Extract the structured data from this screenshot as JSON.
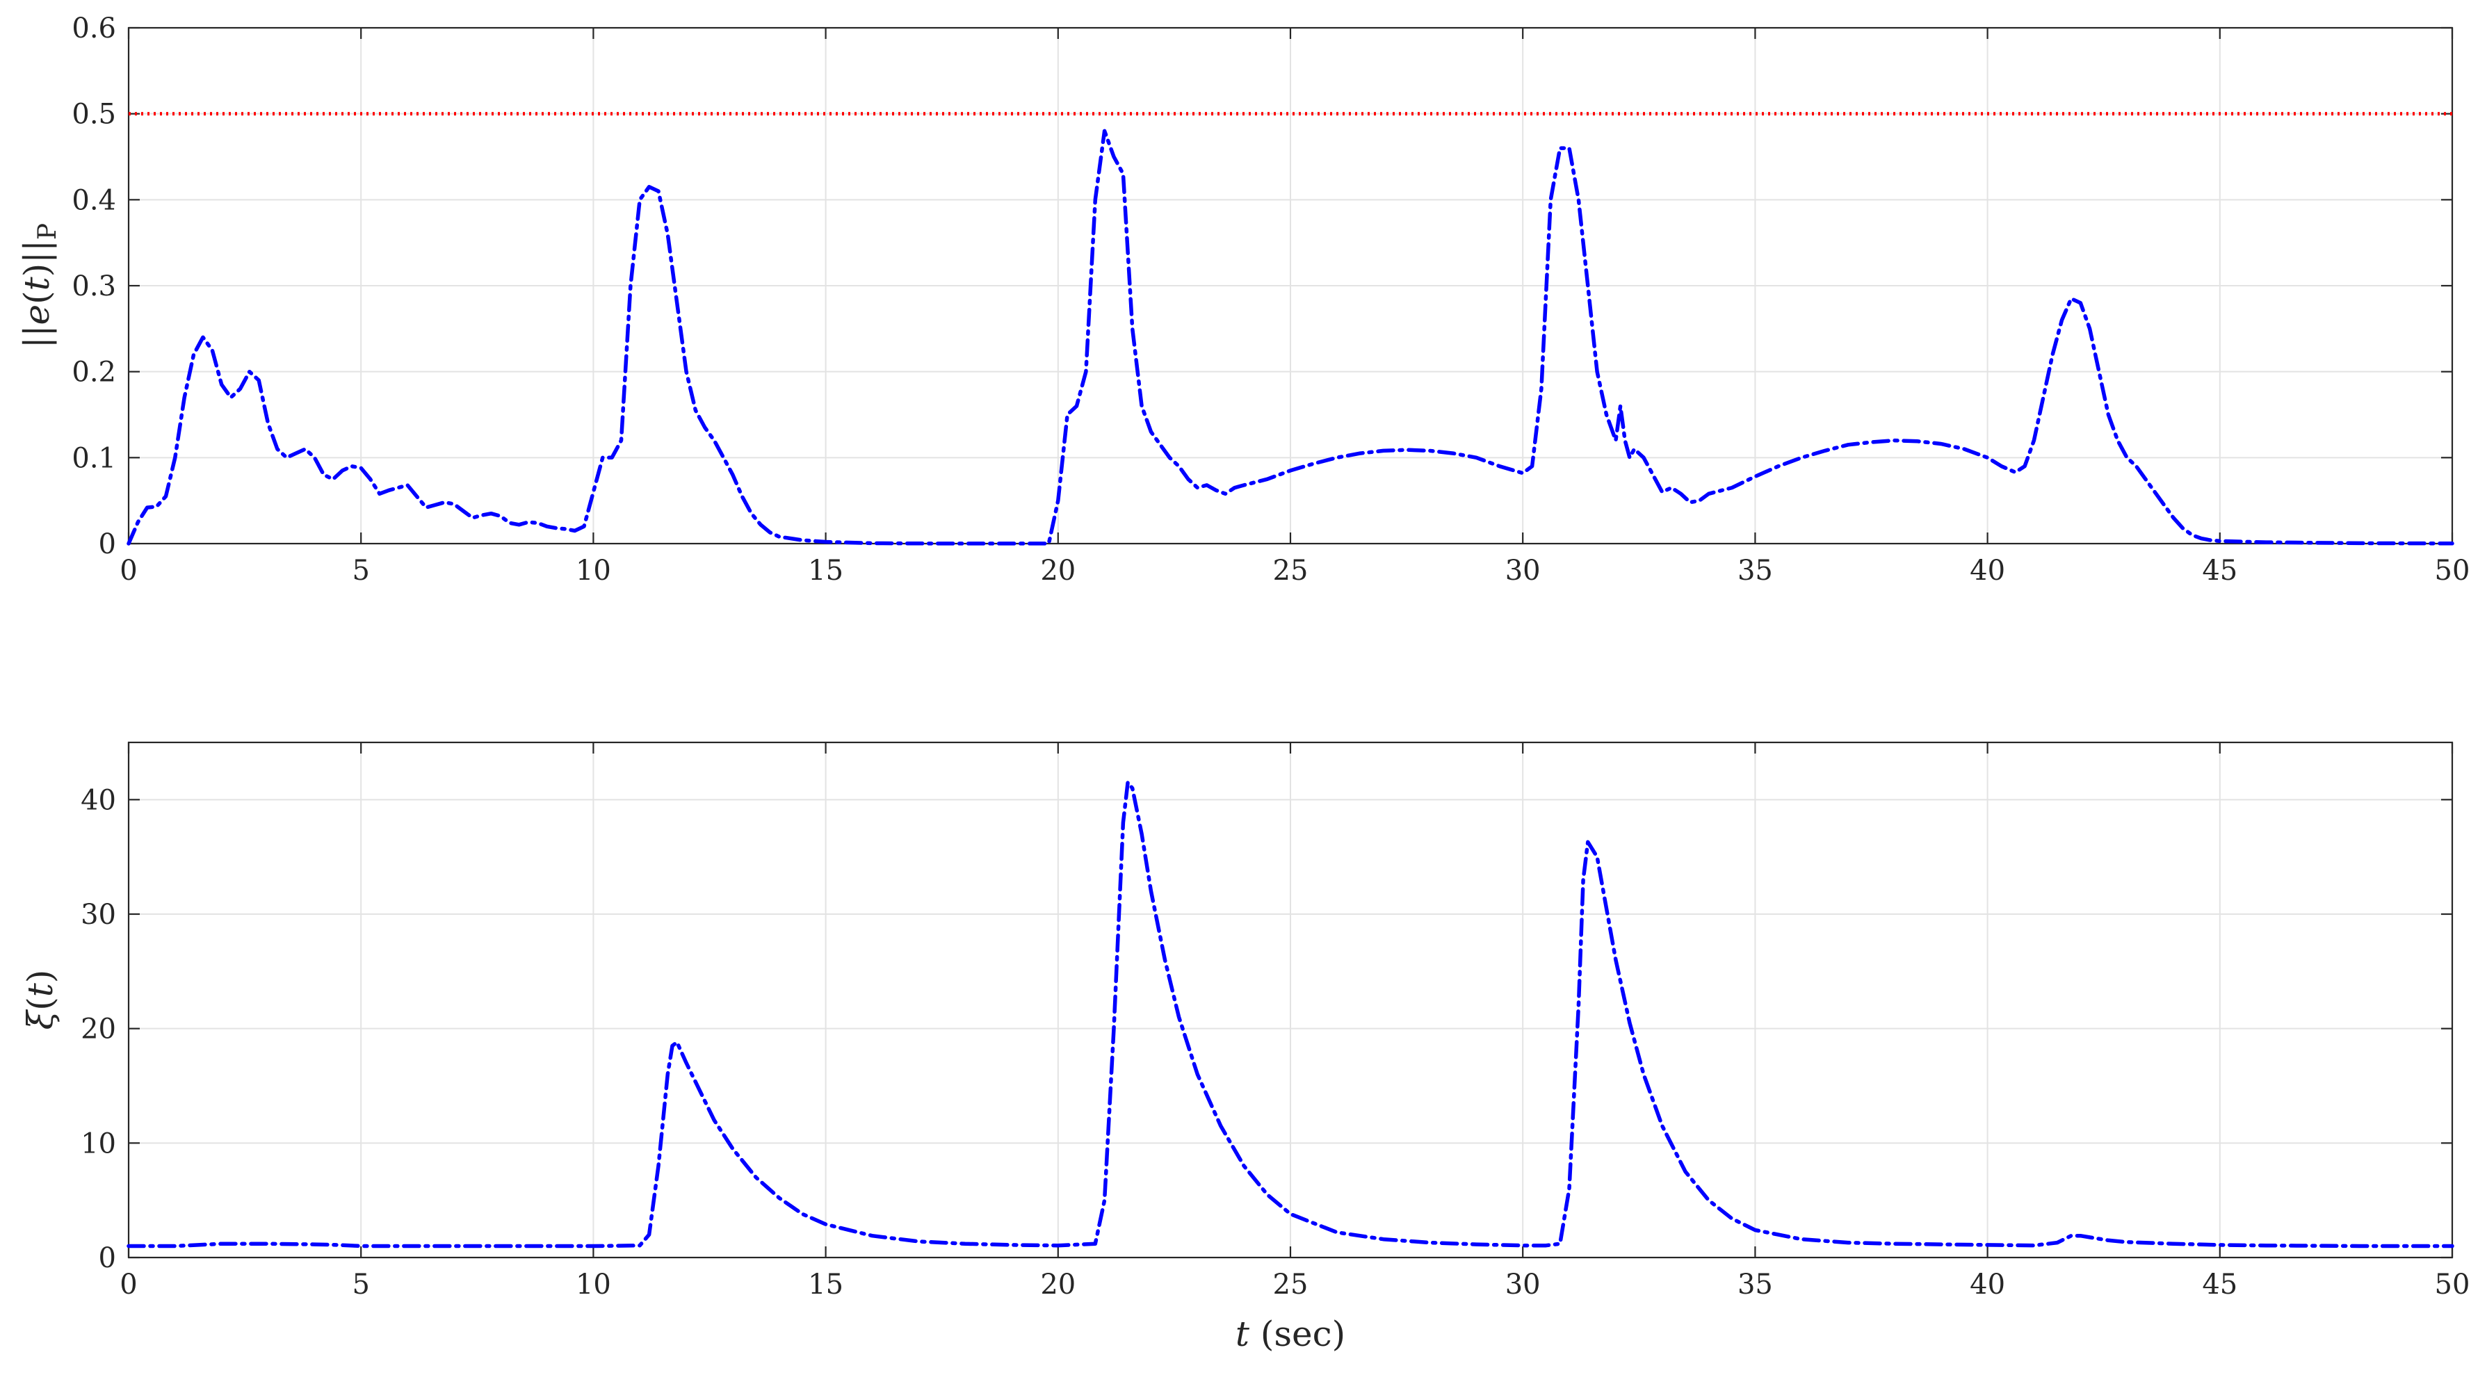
{
  "chart_data": [
    {
      "type": "line",
      "ylabel": "||e(t)||P",
      "ylabel_parts": {
        "prefix": "||",
        "var": "e",
        "open": "(",
        "arg": "t",
        "close": ")",
        "suffix": "||",
        "sub": "P"
      },
      "xlim": [
        0,
        50
      ],
      "ylim": [
        0,
        0.6
      ],
      "xticks": [
        0,
        5,
        10,
        15,
        20,
        25,
        30,
        35,
        40,
        45,
        50
      ],
      "yticks": [
        "0",
        "0.1",
        "0.2",
        "0.3",
        "0.4",
        "0.5",
        "0.6"
      ],
      "grid": true,
      "colors": {
        "series": "#0000ff",
        "threshold": "#ff0000"
      },
      "threshold": {
        "y": 0.5,
        "style": "dotted",
        "color": "#ff0000"
      },
      "series": [
        {
          "style": "dash-dot",
          "color": "#0000ff",
          "x": [
            0,
            0.2,
            0.4,
            0.6,
            0.8,
            1.0,
            1.2,
            1.4,
            1.6,
            1.8,
            2.0,
            2.2,
            2.4,
            2.6,
            2.8,
            3.0,
            3.2,
            3.4,
            3.6,
            3.8,
            4.0,
            4.2,
            4.4,
            4.6,
            4.8,
            5.0,
            5.2,
            5.4,
            5.6,
            5.8,
            6.0,
            6.2,
            6.4,
            6.6,
            6.8,
            7.0,
            7.2,
            7.4,
            7.6,
            7.8,
            8.0,
            8.2,
            8.4,
            8.6,
            8.8,
            9.0,
            9.2,
            9.4,
            9.6,
            9.8,
            10.0,
            10.2,
            10.4,
            10.6,
            10.8,
            11.0,
            11.2,
            11.4,
            11.6,
            11.8,
            12.0,
            12.2,
            12.4,
            12.6,
            12.8,
            13.0,
            13.2,
            13.4,
            13.6,
            13.8,
            14.0,
            14.5,
            15.0,
            16.0,
            17.0,
            18.0,
            19.0,
            19.8,
            20.0,
            20.2,
            20.4,
            20.6,
            20.8,
            21.0,
            21.2,
            21.4,
            21.6,
            21.8,
            22.0,
            22.2,
            22.4,
            22.6,
            22.8,
            23.0,
            23.2,
            23.4,
            23.6,
            23.8,
            24.0,
            24.5,
            25.0,
            25.5,
            26.0,
            26.5,
            27.0,
            27.5,
            28.0,
            28.5,
            29.0,
            29.5,
            30.0,
            30.2,
            30.4,
            30.6,
            30.8,
            31.0,
            31.2,
            31.4,
            31.6,
            31.8,
            32.0,
            32.1,
            32.2,
            32.3,
            32.4,
            32.6,
            32.8,
            33.0,
            33.2,
            33.4,
            33.6,
            33.8,
            34.0,
            34.5,
            35.0,
            35.5,
            36.0,
            36.5,
            37.0,
            37.5,
            38.0,
            38.5,
            39.0,
            39.5,
            40.0,
            40.3,
            40.6,
            40.8,
            41.0,
            41.2,
            41.4,
            41.6,
            41.8,
            42.0,
            42.2,
            42.4,
            42.6,
            42.8,
            43.0,
            43.2,
            43.4,
            43.6,
            43.8,
            44.0,
            44.2,
            44.4,
            44.6,
            44.8,
            45.0,
            46.0,
            47.0,
            48.0,
            49.0,
            50.0
          ],
          "y": [
            0.0,
            0.025,
            0.042,
            0.043,
            0.055,
            0.1,
            0.17,
            0.22,
            0.24,
            0.225,
            0.185,
            0.17,
            0.18,
            0.2,
            0.19,
            0.14,
            0.11,
            0.1,
            0.105,
            0.11,
            0.1,
            0.08,
            0.075,
            0.085,
            0.09,
            0.088,
            0.075,
            0.058,
            0.062,
            0.065,
            0.068,
            0.055,
            0.042,
            0.045,
            0.048,
            0.046,
            0.038,
            0.03,
            0.033,
            0.035,
            0.032,
            0.024,
            0.022,
            0.025,
            0.024,
            0.02,
            0.018,
            0.017,
            0.015,
            0.02,
            0.06,
            0.1,
            0.1,
            0.12,
            0.3,
            0.4,
            0.415,
            0.41,
            0.36,
            0.28,
            0.2,
            0.155,
            0.135,
            0.12,
            0.1,
            0.08,
            0.055,
            0.035,
            0.022,
            0.013,
            0.008,
            0.004,
            0.002,
            0.0005,
            0.0002,
            0.0001,
            0.0001,
            0.0001,
            0.05,
            0.15,
            0.16,
            0.2,
            0.4,
            0.48,
            0.45,
            0.43,
            0.25,
            0.16,
            0.13,
            0.115,
            0.1,
            0.09,
            0.075,
            0.065,
            0.068,
            0.062,
            0.058,
            0.065,
            0.068,
            0.075,
            0.085,
            0.093,
            0.1,
            0.105,
            0.108,
            0.109,
            0.108,
            0.105,
            0.1,
            0.09,
            0.082,
            0.09,
            0.18,
            0.4,
            0.46,
            0.46,
            0.4,
            0.3,
            0.2,
            0.15,
            0.12,
            0.16,
            0.12,
            0.1,
            0.11,
            0.1,
            0.08,
            0.06,
            0.065,
            0.058,
            0.048,
            0.05,
            0.058,
            0.065,
            0.078,
            0.09,
            0.1,
            0.108,
            0.115,
            0.118,
            0.12,
            0.119,
            0.116,
            0.11,
            0.1,
            0.09,
            0.083,
            0.09,
            0.12,
            0.17,
            0.22,
            0.26,
            0.285,
            0.28,
            0.25,
            0.2,
            0.15,
            0.12,
            0.1,
            0.09,
            0.075,
            0.06,
            0.045,
            0.03,
            0.018,
            0.01,
            0.006,
            0.004,
            0.003,
            0.0015,
            0.001,
            0.0005,
            0.0003,
            0.0002
          ]
        }
      ]
    },
    {
      "type": "line",
      "ylabel": "ξ(t)",
      "ylabel_parts": {
        "var": "ξ",
        "open": "(",
        "arg": "t",
        "close": ")"
      },
      "xlabel": "t (sec)",
      "xlabel_parts": {
        "var": "t",
        "unit": " (sec)"
      },
      "xlim": [
        0,
        50
      ],
      "ylim": [
        0,
        45
      ],
      "xticks": [
        0,
        5,
        10,
        15,
        20,
        25,
        30,
        35,
        40,
        45,
        50
      ],
      "yticks": [
        "0",
        "10",
        "20",
        "30",
        "40"
      ],
      "grid": true,
      "colors": {
        "series": "#0000ff"
      },
      "series": [
        {
          "style": "dash-dot",
          "color": "#0000ff",
          "x": [
            0,
            1.0,
            1.5,
            2.0,
            3.0,
            4.0,
            4.5,
            5.0,
            6.0,
            8.0,
            10.0,
            11.0,
            11.2,
            11.4,
            11.6,
            11.7,
            11.8,
            12.0,
            12.3,
            12.6,
            13.0,
            13.5,
            14.0,
            14.5,
            15.0,
            16.0,
            17.0,
            18.0,
            19.0,
            20.0,
            20.8,
            21.0,
            21.2,
            21.4,
            21.5,
            21.6,
            21.8,
            22.0,
            22.3,
            22.6,
            23.0,
            23.5,
            24.0,
            24.5,
            25.0,
            26.0,
            27.0,
            28.0,
            29.0,
            30.0,
            30.5,
            30.8,
            31.0,
            31.2,
            31.3,
            31.4,
            31.6,
            31.8,
            32.0,
            32.3,
            32.6,
            33.0,
            33.5,
            34.0,
            34.5,
            35.0,
            36.0,
            37.0,
            38.0,
            39.0,
            40.0,
            41.0,
            41.5,
            41.8,
            42.0,
            42.3,
            42.6,
            43.0,
            44.0,
            45.0,
            46.0,
            48.0,
            50.0
          ],
          "y": [
            1.0,
            1.0,
            1.1,
            1.2,
            1.2,
            1.15,
            1.1,
            1.0,
            1.0,
            1.0,
            1.0,
            1.05,
            2.0,
            8.0,
            16.0,
            18.5,
            18.8,
            17.0,
            14.5,
            12.0,
            9.5,
            7.0,
            5.2,
            3.8,
            2.9,
            1.9,
            1.4,
            1.2,
            1.1,
            1.05,
            1.2,
            5.0,
            20.0,
            38.0,
            41.5,
            41.0,
            37.0,
            32.0,
            26.0,
            21.0,
            16.0,
            11.5,
            8.0,
            5.5,
            3.8,
            2.2,
            1.6,
            1.3,
            1.15,
            1.05,
            1.05,
            1.2,
            6.0,
            22.0,
            33.0,
            36.3,
            35.0,
            30.5,
            26.0,
            20.5,
            16.0,
            11.5,
            7.5,
            5.0,
            3.4,
            2.4,
            1.6,
            1.3,
            1.2,
            1.15,
            1.1,
            1.05,
            1.3,
            1.9,
            1.9,
            1.7,
            1.5,
            1.35,
            1.2,
            1.1,
            1.05,
            1.0,
            1.0
          ]
        }
      ]
    }
  ]
}
